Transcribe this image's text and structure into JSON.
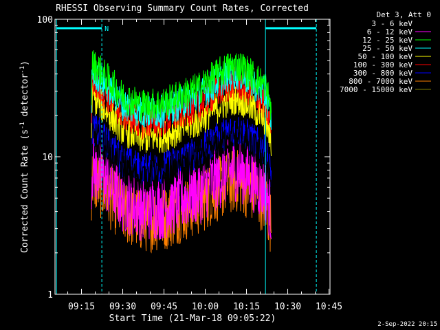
{
  "chart_data": {
    "type": "line",
    "title": "RHESSI Observing Summary Count Rates, Corrected",
    "xlabel": "Start Time (21-Mar-18 09:05:22)",
    "ylabel": "Corrected Count Rate (s",
    "ylabel_sup1": "-1",
    "ylabel_mid": " detector",
    "ylabel_sup2": "-1",
    "ylabel_end": ")",
    "yscale": "log",
    "ylim": [
      1,
      100
    ],
    "xlim_min": [
      545.37,
      645.37
    ],
    "x_ticks": [
      {
        "min": 555,
        "label": "09:15"
      },
      {
        "min": 570,
        "label": "09:30"
      },
      {
        "min": 585,
        "label": "09:45"
      },
      {
        "min": 600,
        "label": "10:00"
      },
      {
        "min": 615,
        "label": "10:15"
      },
      {
        "min": 630,
        "label": "10:30"
      },
      {
        "min": 645,
        "label": "10:45"
      }
    ],
    "y_ticks": [
      {
        "value": 1,
        "label": "1"
      },
      {
        "value": 10,
        "label": "10"
      },
      {
        "value": 100,
        "label": "100"
      }
    ],
    "legend_header": "Det 3, Att 0",
    "legend_position": "right",
    "series": [
      {
        "name": "3 - 6 keV",
        "color": "#000000",
        "level": 1.0
      },
      {
        "name": "6 - 12 keV",
        "color": "#ff00ff",
        "level": 0.58
      },
      {
        "name": "12 - 25 keV",
        "color": "#00ff00",
        "level": 3.3
      },
      {
        "name": "25 - 50 keV",
        "color": "#00ffff",
        "level": 2.9
      },
      {
        "name": "50 - 100 keV",
        "color": "#ffff00",
        "level": 1.9
      },
      {
        "name": "100 - 300 keV",
        "color": "#ff0000",
        "level": 2.45
      },
      {
        "name": "300 - 800 keV",
        "color": "#0000ff",
        "level": 1.13
      },
      {
        "name": "800 - 7000 keV",
        "color": "#ff8000",
        "level": 0.48
      },
      {
        "name": "7000 - 15000 keV",
        "color": "#808000",
        "level": 0.03
      }
    ],
    "profile": [
      {
        "t": 558.5,
        "v": 14.5
      },
      {
        "t": 561,
        "v": 13.3
      },
      {
        "t": 565,
        "v": 10.8
      },
      {
        "t": 570,
        "v": 8.3
      },
      {
        "t": 577,
        "v": 7.2
      },
      {
        "t": 585,
        "v": 7.4
      },
      {
        "t": 592,
        "v": 8.6
      },
      {
        "t": 598,
        "v": 9.6
      },
      {
        "t": 603,
        "v": 11.5
      },
      {
        "t": 608,
        "v": 13.3
      },
      {
        "t": 611,
        "v": 14.0
      },
      {
        "t": 614,
        "v": 13.3
      },
      {
        "t": 619,
        "v": 11.0
      },
      {
        "t": 622,
        "v": 9.7
      },
      {
        "t": 624,
        "v": 6.5
      }
    ],
    "markers": {
      "solid_vertical_min": [
        545.9,
        621.9
      ],
      "dashed_vertical_min": [
        562.4,
        640.4
      ],
      "bars": [
        {
          "from": 545.9,
          "to": 562.4,
          "label": "N"
        },
        {
          "from": 621.9,
          "to": 640.4,
          "label": ""
        }
      ],
      "color": "#00ffff"
    }
  },
  "footer": {
    "date": "2-Sep-2022 20:15"
  }
}
